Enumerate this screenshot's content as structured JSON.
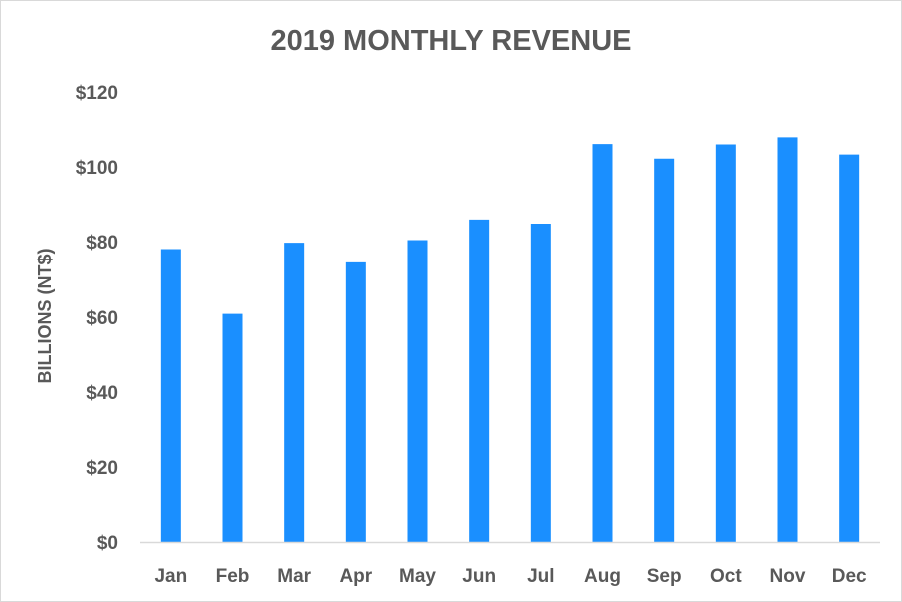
{
  "chart_data": {
    "type": "bar",
    "title": "2019 MONTHLY REVENUE",
    "xlabel": "",
    "ylabel": "BILLIONS (NT$)",
    "categories": [
      "Jan",
      "Feb",
      "Mar",
      "Apr",
      "May",
      "Jun",
      "Jul",
      "Aug",
      "Sep",
      "Oct",
      "Nov",
      "Dec"
    ],
    "values": [
      78,
      60.9,
      79.7,
      74.7,
      80.4,
      85.9,
      84.8,
      106.1,
      102.2,
      106.0,
      107.9,
      103.3
    ],
    "ylim": [
      0,
      120
    ],
    "yticks": [
      0,
      20,
      40,
      60,
      80,
      100,
      120
    ],
    "ytick_labels": [
      "$0",
      "$20",
      "$40",
      "$60",
      "$80",
      "$100",
      "$120"
    ],
    "grid": false,
    "bar_color": "#1a8fff",
    "axis_color": "#d9d9d9"
  }
}
